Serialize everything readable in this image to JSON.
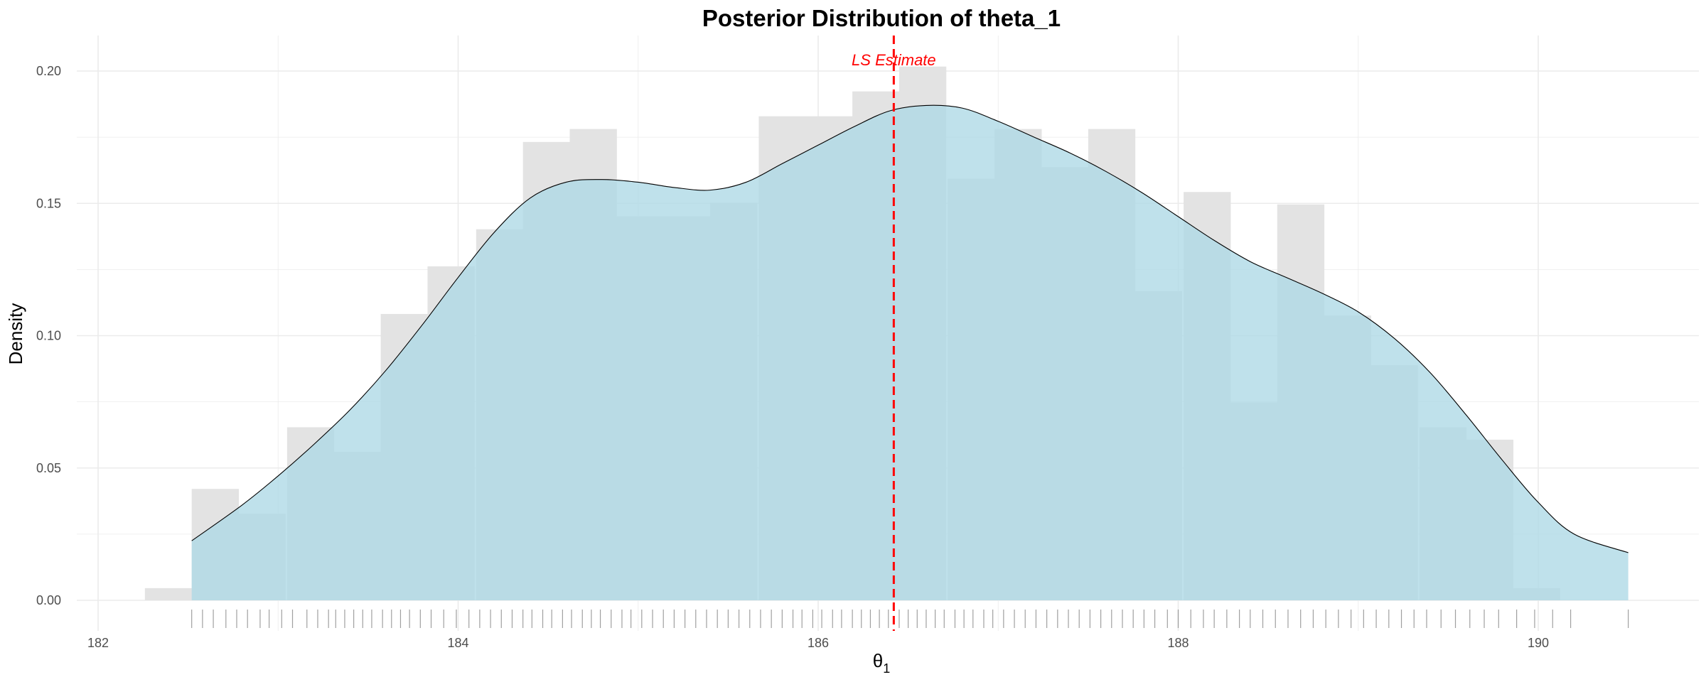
{
  "chart_data": {
    "type": "histogram+density",
    "title": "Posterior Distribution of theta_1",
    "xlabel": "θ",
    "xlabel_subscript": "1",
    "ylabel": "Density",
    "xlim": [
      181.8,
      190.9
    ],
    "ylim": [
      -0.006,
      0.215
    ],
    "x_ticks": [
      182,
      184,
      186,
      188,
      190
    ],
    "y_ticks": [
      0.0,
      0.05,
      0.1,
      0.15,
      0.2
    ],
    "x_tick_labels": [
      "182",
      "184",
      "186",
      "188",
      "190"
    ],
    "y_tick_labels": [
      "0.00",
      "0.05",
      "0.10",
      "0.15",
      "0.20"
    ],
    "grid": true,
    "legend": "none",
    "histogram": {
      "bin_width": 0.2619,
      "bin_left_edges": [
        182.26,
        182.52,
        182.78,
        183.05,
        183.31,
        183.57,
        183.83,
        184.1,
        184.36,
        184.62,
        184.88,
        185.14,
        185.4,
        185.67,
        185.93,
        186.19,
        186.45,
        186.72,
        186.98,
        187.24,
        187.5,
        187.76,
        188.03,
        188.29,
        188.55,
        188.81,
        189.07,
        189.34,
        189.6,
        189.86,
        190.12
      ],
      "densities": [
        0.0046,
        0.0421,
        0.0327,
        0.0654,
        0.0561,
        0.1082,
        0.1262,
        0.1402,
        0.1732,
        0.1781,
        0.1451,
        0.1451,
        0.1501,
        0.1829,
        0.1829,
        0.1923,
        0.2017,
        0.1593,
        0.1781,
        0.1637,
        0.1781,
        0.1168,
        0.1543,
        0.0748,
        0.1496,
        0.1076,
        0.0889,
        0.0654,
        0.0607,
        0.0046
      ]
    },
    "density_curve": {
      "x": [
        182.52,
        182.8,
        183.0,
        183.2,
        183.4,
        183.6,
        183.8,
        184.0,
        184.2,
        184.4,
        184.6,
        184.8,
        185.0,
        185.2,
        185.4,
        185.6,
        185.8,
        186.0,
        186.2,
        186.4,
        186.6,
        186.8,
        187.0,
        187.2,
        187.4,
        187.6,
        187.8,
        188.0,
        188.2,
        188.4,
        188.6,
        188.8,
        189.0,
        189.2,
        189.4,
        189.6,
        189.8,
        190.0,
        190.2,
        190.5
      ],
      "y": [
        0.0225,
        0.036,
        0.047,
        0.059,
        0.072,
        0.087,
        0.104,
        0.122,
        0.139,
        0.152,
        0.158,
        0.159,
        0.158,
        0.156,
        0.155,
        0.158,
        0.165,
        0.172,
        0.179,
        0.185,
        0.187,
        0.186,
        0.181,
        0.175,
        0.169,
        0.162,
        0.154,
        0.145,
        0.136,
        0.128,
        0.122,
        0.116,
        0.109,
        0.099,
        0.086,
        0.07,
        0.053,
        0.037,
        0.025,
        0.018
      ]
    },
    "rug_x": [
      182.52,
      182.58,
      182.64,
      182.71,
      182.77,
      182.83,
      182.9,
      182.95,
      183.02,
      183.08,
      183.16,
      183.22,
      183.28,
      183.32,
      183.37,
      183.42,
      183.47,
      183.52,
      183.58,
      183.63,
      183.68,
      183.73,
      183.79,
      183.85,
      183.92,
      183.99,
      184.06,
      184.12,
      184.18,
      184.24,
      184.3,
      184.36,
      184.41,
      184.47,
      184.52,
      184.58,
      184.63,
      184.69,
      184.74,
      184.79,
      184.85,
      184.91,
      184.96,
      185.02,
      185.08,
      185.14,
      185.2,
      185.26,
      185.32,
      185.38,
      185.44,
      185.5,
      185.56,
      185.62,
      185.68,
      185.74,
      185.8,
      185.86,
      185.91,
      185.97,
      186.02,
      186.08,
      186.13,
      186.19,
      186.24,
      186.29,
      186.34,
      186.39,
      186.45,
      186.5,
      186.55,
      186.6,
      186.65,
      186.7,
      186.76,
      186.81,
      186.86,
      186.92,
      186.97,
      187.03,
      187.09,
      187.15,
      187.21,
      187.27,
      187.33,
      187.39,
      187.45,
      187.51,
      187.57,
      187.63,
      187.69,
      187.75,
      187.81,
      187.87,
      187.94,
      188.0,
      188.07,
      188.14,
      188.2,
      188.27,
      188.34,
      188.4,
      188.47,
      188.54,
      188.61,
      188.68,
      188.75,
      188.82,
      188.89,
      188.96,
      189.03,
      189.1,
      189.17,
      189.24,
      189.31,
      189.38,
      189.46,
      189.54,
      189.62,
      189.7,
      189.78,
      189.88,
      189.98,
      190.08,
      190.18,
      190.5
    ],
    "reference_line": {
      "x": 186.42,
      "label": "LS Estimate",
      "color": "#ff0000",
      "style": "dashed"
    },
    "colors": {
      "histogram_fill": "#e3e3e3",
      "density_fill": "#add8e6",
      "density_line": "#000000",
      "rug": "#888888",
      "grid": "#ebebeb"
    }
  }
}
